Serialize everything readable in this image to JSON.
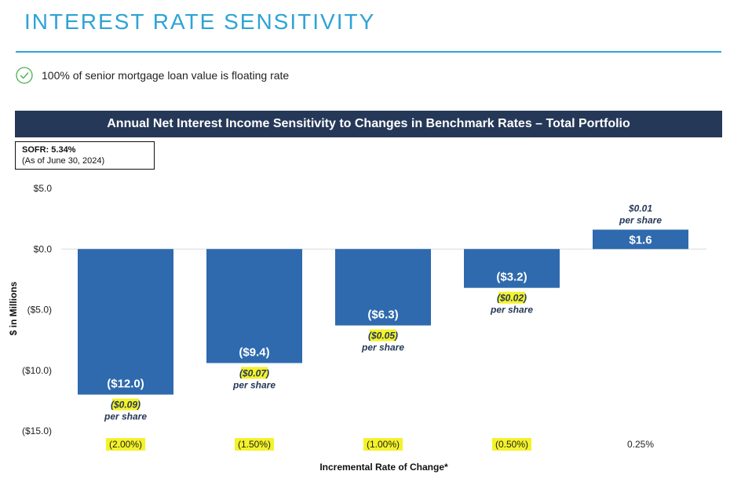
{
  "header": {
    "title": "INTEREST RATE SENSITIVITY"
  },
  "bullet": {
    "icon": "check-circle-icon",
    "text": "100% of senior mortgage loan value is floating rate"
  },
  "sofr": {
    "rate": "SOFR: 5.34%",
    "date": "(As of June 30, 2024)"
  },
  "colors": {
    "accent": "#2ea3d6",
    "header_bg": "#253858",
    "bar": "#2e6aad",
    "highlight": "#f4f22a"
  },
  "chart_data": {
    "type": "bar",
    "title": "Annual Net Interest Income Sensitivity to Changes in Benchmark Rates – Total Portfolio",
    "xlabel": "Incremental Rate of Change*",
    "ylabel": "$ in Millions",
    "ylim": [
      -15,
      5
    ],
    "yticks": [
      5,
      0,
      -5,
      -10,
      -15
    ],
    "ytick_labels": [
      "$5.0",
      "$0.0",
      "($5.0)",
      "($10.0)",
      "($15.0)"
    ],
    "categories": [
      "(2.00%)",
      "(1.50%)",
      "(1.00%)",
      "(0.50%)",
      "0.25%"
    ],
    "category_highlighted": [
      true,
      true,
      true,
      true,
      false
    ],
    "values": [
      -12.0,
      -9.4,
      -6.3,
      -3.2,
      1.6
    ],
    "value_labels": [
      "($12.0)",
      "($9.4)",
      "($6.3)",
      "($3.2)",
      "$1.6"
    ],
    "per_share": [
      "$0.09",
      "$0.07",
      "$0.05",
      "$0.02",
      "$0.01"
    ],
    "per_share_negative": [
      true,
      true,
      true,
      true,
      false
    ],
    "per_share_highlighted": [
      true,
      true,
      true,
      true,
      false
    ],
    "per_share_suffix": "per share",
    "grid": false,
    "legend": "none"
  }
}
